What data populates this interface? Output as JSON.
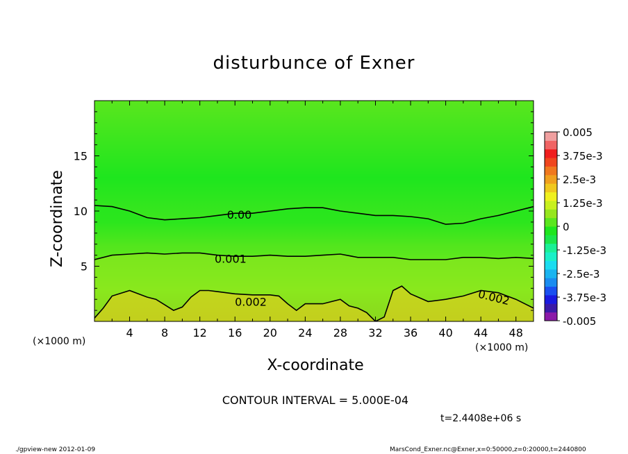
{
  "chart_data": {
    "type": "heatmap",
    "title": "disturbunce of Exner",
    "xlabel": "X-coordinate",
    "ylabel": "Z-coordinate",
    "x_unit_label": "(×1000 m)",
    "xlim": [
      0,
      50
    ],
    "ylim": [
      0,
      20
    ],
    "x_ticks": [
      4,
      8,
      12,
      16,
      20,
      24,
      28,
      32,
      36,
      40,
      44,
      48
    ],
    "x_tick_labels": [
      "4",
      "8",
      "12",
      "16",
      "20",
      "24",
      "28",
      "32",
      "36",
      "40",
      "44",
      "48"
    ],
    "y_ticks": [
      5,
      10,
      15
    ],
    "y_tick_labels": [
      "5",
      "10",
      "15"
    ],
    "colorbar": {
      "min": -0.005,
      "max": 0.005,
      "step": 0.0005,
      "labels": [
        "0.005",
        "3.75e-3",
        "2.5e-3",
        "1.25e-3",
        "0",
        "-1.25e-3",
        "-2.5e-3",
        "-3.75e-3",
        "-0.005"
      ],
      "colors": [
        "#8b1aa8",
        "#3b1aa8",
        "#1a1ae0",
        "#1a50f0",
        "#1a8cf0",
        "#1ab4f0",
        "#1adcf0",
        "#1af0c8",
        "#1af096",
        "#1ae64b",
        "#1ee61e",
        "#5ae61e",
        "#96e61e",
        "#c8f01e",
        "#f0f01e",
        "#f0c81e",
        "#f0a01e",
        "#f0781e",
        "#f0461e",
        "#f01e1e",
        "#f06464",
        "#f0a0a0"
      ]
    },
    "contour_labels": [
      {
        "text": "0.00",
        "value": 0.0
      },
      {
        "text": "0.001",
        "value": 0.001
      },
      {
        "text": "0.002",
        "value": 0.002
      },
      {
        "text": "0.002",
        "value": 0.002
      }
    ],
    "contour_lines": [
      {
        "level": 0.0,
        "x": [
          0,
          2,
          4,
          6,
          8,
          10,
          12,
          14,
          16,
          18,
          20,
          22,
          24,
          26,
          28,
          30,
          32,
          34,
          36,
          38,
          40,
          42,
          44,
          46,
          48,
          50
        ],
        "z": [
          10.5,
          10.4,
          10.0,
          9.4,
          9.2,
          9.3,
          9.4,
          9.6,
          9.8,
          9.8,
          10.0,
          10.2,
          10.3,
          10.3,
          10.0,
          9.8,
          9.6,
          9.6,
          9.5,
          9.3,
          8.8,
          8.9,
          9.3,
          9.6,
          10.0,
          10.4
        ]
      },
      {
        "level": 0.001,
        "x": [
          0,
          2,
          4,
          6,
          8,
          10,
          12,
          14,
          16,
          18,
          20,
          22,
          24,
          26,
          28,
          30,
          32,
          34,
          36,
          38,
          40,
          42,
          44,
          46,
          48,
          50
        ],
        "z": [
          5.6,
          6.0,
          6.1,
          6.2,
          6.1,
          6.2,
          6.2,
          6.0,
          5.9,
          5.9,
          6.0,
          5.9,
          5.9,
          6.0,
          6.1,
          5.8,
          5.8,
          5.8,
          5.6,
          5.6,
          5.6,
          5.8,
          5.8,
          5.7,
          5.8,
          5.7
        ]
      },
      {
        "level": 0.002,
        "x": [
          0,
          1,
          2,
          4,
          6,
          7,
          8,
          9,
          10,
          11,
          12,
          13,
          14,
          16,
          18,
          20,
          21,
          22,
          23,
          24,
          26,
          28,
          29,
          30,
          31,
          32,
          33,
          34,
          35,
          36,
          38,
          40,
          42,
          44,
          46,
          48,
          50
        ],
        "z": [
          0.3,
          1.2,
          2.3,
          2.8,
          2.2,
          2.0,
          1.5,
          1.0,
          1.3,
          2.2,
          2.8,
          2.8,
          2.7,
          2.5,
          2.4,
          2.4,
          2.3,
          1.6,
          1.0,
          1.6,
          1.6,
          2.0,
          1.4,
          1.2,
          0.8,
          0.0,
          0.4,
          2.8,
          3.2,
          2.5,
          1.8,
          2.0,
          2.3,
          2.8,
          2.6,
          2.0,
          1.2
        ]
      }
    ],
    "grid": false,
    "legend": "right"
  },
  "contour_interval": "CONTOUR INTERVAL = 5.000E-04",
  "time_label": "t=2.4408e+06 s",
  "footer_left": "./gpview-new   2012-01-09",
  "footer_right": "MarsCond_Exner.nc@Exner,x=0:50000,z=0:20000,t=2440800"
}
